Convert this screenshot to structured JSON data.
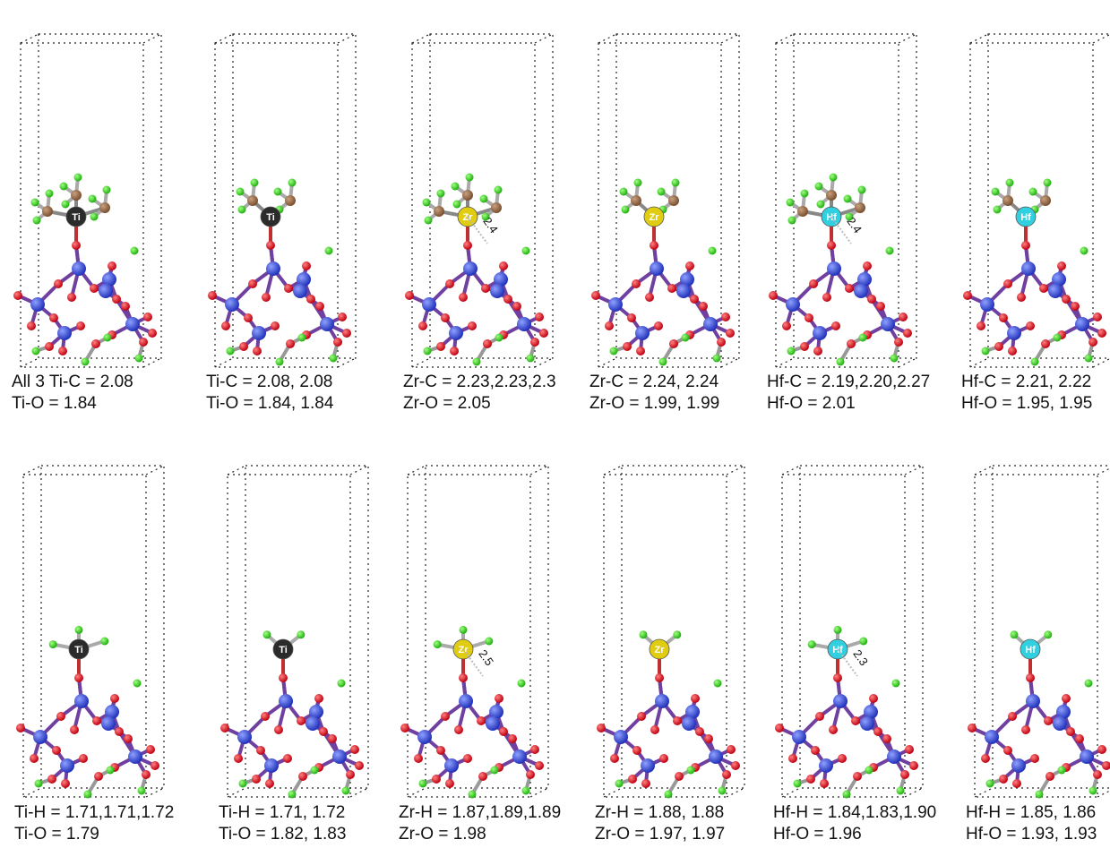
{
  "rows": [
    [
      {
        "caption": [
          "All 3 Ti-C = 2.08",
          "Ti-O = 1.84"
        ],
        "metal": "Ti",
        "metal_color": "#2b2b2b"
      },
      {
        "caption": [
          "Ti-C = 2.08, 2.08",
          "Ti-O = 1.84, 1.84"
        ],
        "metal": "Ti",
        "metal_color": "#2b2b2b"
      },
      {
        "caption": [
          "Zr-C = 2.23,2.23,2.3",
          "Zr-O = 2.05"
        ],
        "metal": "Zr",
        "metal_color": "#e0cc10",
        "distance": "2.4"
      },
      {
        "caption": [
          "Zr-C = 2.24, 2.24",
          "Zr-O = 1.99, 1.99"
        ],
        "metal": "Zr",
        "metal_color": "#e0cc10"
      },
      {
        "caption": [
          "Hf-C = 2.19,2.20,2.27",
          "Hf-O = 2.01"
        ],
        "metal": "Hf",
        "metal_color": "#30d0e0",
        "distance": "2.4"
      },
      {
        "caption": [
          "Hf-C = 2.21, 2.22",
          "Hf-O = 1.95, 1.95"
        ],
        "metal": "Hf",
        "metal_color": "#30d0e0"
      }
    ],
    [
      {
        "caption": [
          "Ti-H = 1.71,1.71,1.72",
          "Ti-O = 1.79"
        ],
        "metal": "Ti",
        "metal_color": "#2b2b2b"
      },
      {
        "caption": [
          "Ti-H = 1.71, 1.72",
          "Ti-O = 1.82, 1.83"
        ],
        "metal": "Ti",
        "metal_color": "#2b2b2b"
      },
      {
        "caption": [
          "Zr-H = 1.87,1.89,1.89",
          "Zr-O = 1.98"
        ],
        "metal": "Zr",
        "metal_color": "#e0cc10",
        "distance": "2.5"
      },
      {
        "caption": [
          "Zr-H = 1.88, 1.88",
          "Zr-O = 1.97, 1.97"
        ],
        "metal": "Zr",
        "metal_color": "#e0cc10"
      },
      {
        "caption": [
          "Hf-H = 1.84,1.83,1.90",
          "Hf-O = 1.96"
        ],
        "metal": "Hf",
        "metal_color": "#30d0e0",
        "distance": "2.3"
      },
      {
        "caption": [
          "Hf-H = 1.85, 1.86",
          "Hf-O = 1.93, 1.93"
        ],
        "metal": "Hf",
        "metal_color": "#30d0e0"
      }
    ]
  ]
}
